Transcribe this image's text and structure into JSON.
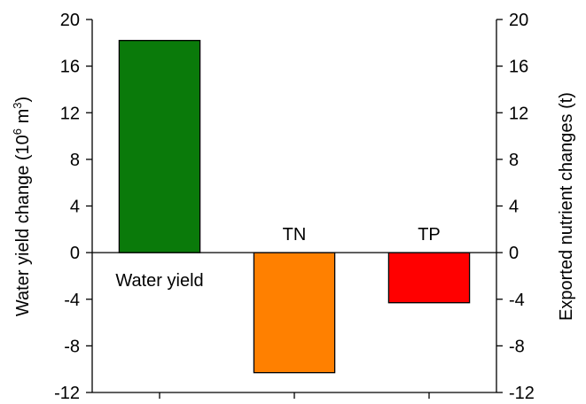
{
  "chart_data": {
    "type": "bar",
    "categories": [
      "Water yield",
      "TN",
      "TP"
    ],
    "series": [
      {
        "values": [
          18.2,
          -10.3,
          -4.3
        ]
      }
    ],
    "colors": [
      "#0a7a0a",
      "#ff8000",
      "#ff0000"
    ],
    "bar_labels": [
      "Water yield",
      "TN",
      "TP"
    ],
    "ylabel_left": {
      "main": "Water yield change (10",
      "sup1": "6",
      "mid": " m",
      "sup2": "3",
      "end": ")"
    },
    "ylabel_right": "Exported nutrient changes (t)",
    "ylim": [
      -12,
      20
    ],
    "yticks": [
      -12,
      -8,
      -4,
      0,
      4,
      8,
      12,
      16,
      20
    ],
    "ytick_labels": [
      "-12",
      "-8",
      "-4",
      "0",
      "4",
      "8",
      "12",
      "16",
      "20"
    ],
    "grid": false,
    "legend": "none"
  }
}
